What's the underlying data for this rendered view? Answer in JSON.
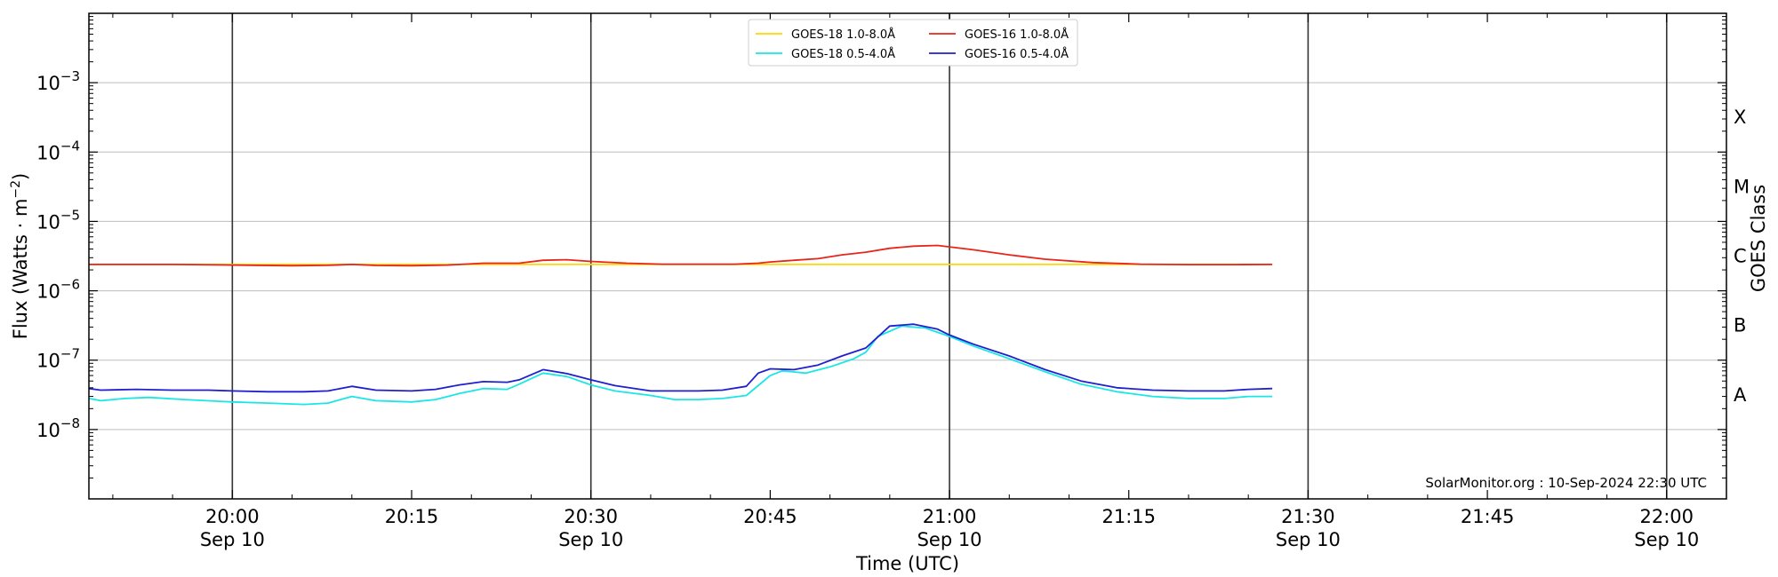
{
  "chart_data": {
    "type": "line",
    "xlabel": "Time (UTC)",
    "ylabel": "Flux (Watts · m",
    "ylabel_exp": "−2",
    "ylabel_close": ")",
    "y2label": "GOES Class",
    "yscale": "log",
    "ylim": [
      1e-09,
      0.01
    ],
    "xlim": [
      "19:48",
      "22:05"
    ],
    "grid": "horizontal",
    "legend_placement": "top-center",
    "credit": "SolarMonitor.org : 10-Sep-2024 22:30 UTC",
    "x_ticks": [
      {
        "time": "20:00",
        "label": "20:00",
        "date": "Sep 10",
        "vline": true
      },
      {
        "time": "20:15",
        "label": "20:15",
        "date": "",
        "vline": false
      },
      {
        "time": "20:30",
        "label": "20:30",
        "date": "Sep 10",
        "vline": true
      },
      {
        "time": "20:45",
        "label": "20:45",
        "date": "",
        "vline": false
      },
      {
        "time": "21:00",
        "label": "21:00",
        "date": "Sep 10",
        "vline": true
      },
      {
        "time": "21:15",
        "label": "21:15",
        "date": "",
        "vline": false
      },
      {
        "time": "21:30",
        "label": "21:30",
        "date": "Sep 10",
        "vline": true
      },
      {
        "time": "21:45",
        "label": "21:45",
        "date": "",
        "vline": false
      },
      {
        "time": "22:00",
        "label": "22:00",
        "date": "Sep 10",
        "vline": true
      }
    ],
    "y_ticks": [
      {
        "value": 1e-08,
        "base": "10",
        "exp": "−8"
      },
      {
        "value": 1e-07,
        "base": "10",
        "exp": "−7"
      },
      {
        "value": 1e-06,
        "base": "10",
        "exp": "−6"
      },
      {
        "value": 1e-05,
        "base": "10",
        "exp": "−5"
      },
      {
        "value": 0.0001,
        "base": "10",
        "exp": "−4"
      },
      {
        "value": 0.001,
        "base": "10",
        "exp": "−3"
      }
    ],
    "goes_classes": [
      {
        "label": "A",
        "value": 3.16e-08
      },
      {
        "label": "B",
        "value": 3.16e-07
      },
      {
        "label": "C",
        "value": 3.16e-06
      },
      {
        "label": "M",
        "value": 3.16e-05
      },
      {
        "label": "X",
        "value": 0.000316
      }
    ],
    "series": [
      {
        "name": "GOES-18 1.0-8.0Å",
        "color": "#ffd700",
        "x": [
          "19:48",
          "21:27"
        ],
        "values": [
          2.4e-06,
          2.4e-06
        ],
        "hidden_behind": true
      },
      {
        "name": "GOES-16 1.0-8.0Å",
        "color": "#e8251a",
        "x": [
          "19:48",
          "19:55",
          "20:00",
          "20:05",
          "20:08",
          "20:10",
          "20:12",
          "20:15",
          "20:18",
          "20:21",
          "20:24",
          "20:26",
          "20:28",
          "20:30",
          "20:33",
          "20:36",
          "20:39",
          "20:42",
          "20:44",
          "20:45",
          "20:47",
          "20:49",
          "20:51",
          "20:53",
          "20:55",
          "20:57",
          "20:59",
          "21:00",
          "21:02",
          "21:05",
          "21:08",
          "21:12",
          "21:16",
          "21:20",
          "21:24",
          "21:27"
        ],
        "values": [
          2.4e-06,
          2.4e-06,
          2.35e-06,
          2.3e-06,
          2.33e-06,
          2.4e-06,
          2.32e-06,
          2.3e-06,
          2.35e-06,
          2.5e-06,
          2.5e-06,
          2.75e-06,
          2.8e-06,
          2.65e-06,
          2.5e-06,
          2.42e-06,
          2.42e-06,
          2.42e-06,
          2.5e-06,
          2.6e-06,
          2.75e-06,
          2.9e-06,
          3.3e-06,
          3.6e-06,
          4.1e-06,
          4.4e-06,
          4.5e-06,
          4.3e-06,
          3.9e-06,
          3.3e-06,
          2.85e-06,
          2.55e-06,
          2.42e-06,
          2.38e-06,
          2.38e-06,
          2.4e-06
        ]
      },
      {
        "name": "GOES-18 0.5-4.0Å",
        "color": "#19e6e6",
        "x": [
          "19:48",
          "19:49",
          "19:51",
          "19:53",
          "19:56",
          "20:00",
          "20:03",
          "20:06",
          "20:08",
          "20:10",
          "20:12",
          "20:15",
          "20:17",
          "20:19",
          "20:21",
          "20:23",
          "20:24",
          "20:26",
          "20:28",
          "20:30",
          "20:32",
          "20:35",
          "20:37",
          "20:39",
          "20:41",
          "20:43",
          "20:45",
          "20:46",
          "20:48",
          "20:50",
          "20:52",
          "20:53",
          "20:54",
          "20:56",
          "20:58",
          "21:00",
          "21:02",
          "21:05",
          "21:08",
          "21:11",
          "21:14",
          "21:17",
          "21:20",
          "21:23",
          "21:25",
          "21:27"
        ],
        "values": [
          2.8e-08,
          2.6e-08,
          2.8e-08,
          2.9e-08,
          2.7e-08,
          2.5e-08,
          2.4e-08,
          2.3e-08,
          2.4e-08,
          3e-08,
          2.6e-08,
          2.5e-08,
          2.7e-08,
          3.3e-08,
          3.9e-08,
          3.8e-08,
          4.5e-08,
          6.5e-08,
          5.8e-08,
          4.4e-08,
          3.6e-08,
          3.1e-08,
          2.7e-08,
          2.7e-08,
          2.8e-08,
          3.1e-08,
          6e-08,
          7e-08,
          6.5e-08,
          8e-08,
          1.05e-07,
          1.3e-07,
          2.2e-07,
          3.1e-07,
          2.9e-07,
          2.2e-07,
          1.6e-07,
          1.05e-07,
          6.8e-08,
          4.5e-08,
          3.5e-08,
          3e-08,
          2.8e-08,
          2.8e-08,
          3e-08,
          3e-08
        ]
      },
      {
        "name": "GOES-16 0.5-4.0Å",
        "color": "#1f1fd0",
        "x": [
          "19:48",
          "19:49",
          "19:52",
          "19:55",
          "19:58",
          "20:00",
          "20:03",
          "20:06",
          "20:08",
          "20:10",
          "20:12",
          "20:15",
          "20:17",
          "20:19",
          "20:21",
          "20:23",
          "20:24",
          "20:26",
          "20:28",
          "20:30",
          "20:32",
          "20:35",
          "20:37",
          "20:39",
          "20:41",
          "20:43",
          "20:44",
          "20:45",
          "20:47",
          "20:49",
          "20:51",
          "20:53",
          "20:55",
          "20:57",
          "20:59",
          "21:00",
          "21:02",
          "21:05",
          "21:08",
          "21:11",
          "21:14",
          "21:17",
          "21:20",
          "21:23",
          "21:25",
          "21:27"
        ],
        "values": [
          3.9e-08,
          3.7e-08,
          3.8e-08,
          3.7e-08,
          3.7e-08,
          3.6e-08,
          3.5e-08,
          3.5e-08,
          3.6e-08,
          4.2e-08,
          3.7e-08,
          3.6e-08,
          3.8e-08,
          4.4e-08,
          4.9e-08,
          4.8e-08,
          5.2e-08,
          7.3e-08,
          6.4e-08,
          5.2e-08,
          4.3e-08,
          3.6e-08,
          3.6e-08,
          3.6e-08,
          3.7e-08,
          4.2e-08,
          6.5e-08,
          7.5e-08,
          7.3e-08,
          8.5e-08,
          1.15e-07,
          1.5e-07,
          3.1e-07,
          3.3e-07,
          2.8e-07,
          2.3e-07,
          1.7e-07,
          1.15e-07,
          7.3e-08,
          5e-08,
          4e-08,
          3.7e-08,
          3.6e-08,
          3.6e-08,
          3.8e-08,
          3.9e-08
        ]
      }
    ]
  }
}
